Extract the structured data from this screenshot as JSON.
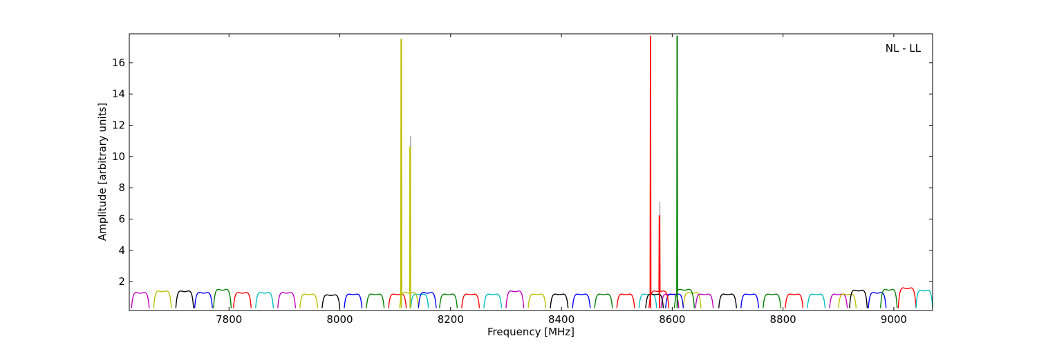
{
  "chart_data": {
    "type": "line",
    "title": "",
    "annotation": "NL - LL",
    "xlabel": "Frequency [MHz]",
    "ylabel": "Amplitude [arbitrary units]",
    "xlim": [
      7620,
      9070
    ],
    "ylim": [
      0.15,
      17.85
    ],
    "x_ticks": [
      7800,
      8000,
      8200,
      8400,
      8600,
      8800,
      9000
    ],
    "y_ticks": [
      2,
      4,
      6,
      8,
      10,
      12,
      14,
      16
    ],
    "grid": false,
    "legend": "none",
    "subband_width_mhz": 40,
    "series_colors": [
      "#bf00bf",
      "#bfbf00",
      "#000000",
      "#0000ff",
      "#008000",
      "#ff0000",
      "#00bfbf"
    ],
    "series": [
      {
        "color": "#bf00bf",
        "x_start": 7624,
        "x_end": 7656,
        "peak": 1.3
      },
      {
        "color": "#bfbf00",
        "x_start": 7664,
        "x_end": 7696,
        "peak": 1.4
      },
      {
        "color": "#000000",
        "x_start": 7704,
        "x_end": 7736,
        "peak": 1.4
      },
      {
        "color": "#0000ff",
        "x_start": 7738,
        "x_end": 7770,
        "peak": 1.3
      },
      {
        "color": "#008000",
        "x_start": 7772,
        "x_end": 7804,
        "peak": 1.5
      },
      {
        "color": "#ff0000",
        "x_start": 7808,
        "x_end": 7840,
        "peak": 1.3
      },
      {
        "color": "#00bfbf",
        "x_start": 7848,
        "x_end": 7880,
        "peak": 1.3
      },
      {
        "color": "#bf00bf",
        "x_start": 7888,
        "x_end": 7920,
        "peak": 1.3
      },
      {
        "color": "#bfbf00",
        "x_start": 7928,
        "x_end": 7960,
        "peak": 1.2
      },
      {
        "color": "#000000",
        "x_start": 7968,
        "x_end": 8000,
        "peak": 1.15
      },
      {
        "color": "#0000ff",
        "x_start": 8008,
        "x_end": 8040,
        "peak": 1.2
      },
      {
        "color": "#008000",
        "x_start": 8048,
        "x_end": 8080,
        "peak": 1.2
      },
      {
        "color": "#ff0000",
        "x_start": 8088,
        "x_end": 8120,
        "peak": 1.2
      },
      {
        "color": "#00bfbf",
        "x_start": 8128,
        "x_end": 8160,
        "peak": 1.2
      },
      {
        "color": "#bfbf00",
        "x_start": 8108,
        "x_end": 8142,
        "peak": 1.3,
        "spikes": [
          {
            "x": 8111,
            "y": 17.5
          },
          {
            "x": 8127,
            "y": 10.6
          }
        ]
      },
      {
        "color": "#0000ff",
        "x_start": 8142,
        "x_end": 8174,
        "peak": 1.3
      },
      {
        "color": "#008000",
        "x_start": 8180,
        "x_end": 8212,
        "peak": 1.2
      },
      {
        "color": "#ff0000",
        "x_start": 8220,
        "x_end": 8252,
        "peak": 1.2
      },
      {
        "color": "#00bfbf",
        "x_start": 8260,
        "x_end": 8292,
        "peak": 1.2
      },
      {
        "color": "#bf00bf",
        "x_start": 8300,
        "x_end": 8332,
        "peak": 1.4
      },
      {
        "color": "#bfbf00",
        "x_start": 8340,
        "x_end": 8372,
        "peak": 1.2
      },
      {
        "color": "#000000",
        "x_start": 8380,
        "x_end": 8412,
        "peak": 1.2
      },
      {
        "color": "#0000ff",
        "x_start": 8420,
        "x_end": 8452,
        "peak": 1.2
      },
      {
        "color": "#008000",
        "x_start": 8460,
        "x_end": 8492,
        "peak": 1.2
      },
      {
        "color": "#ff0000",
        "x_start": 8500,
        "x_end": 8532,
        "peak": 1.2
      },
      {
        "color": "#00bfbf",
        "x_start": 8540,
        "x_end": 8572,
        "peak": 1.2
      },
      {
        "color": "#bf00bf",
        "x_start": 8580,
        "x_end": 8612,
        "peak": 1.2
      },
      {
        "color": "#bfbf00",
        "x_start": 8620,
        "x_end": 8652,
        "peak": 1.3
      },
      {
        "color": "#000000",
        "x_start": 8552,
        "x_end": 8584,
        "peak": 1.2
      },
      {
        "color": "#0000ff",
        "x_start": 8588,
        "x_end": 8620,
        "peak": 1.2
      },
      {
        "color": "#ff0000",
        "x_start": 8558,
        "x_end": 8594,
        "peak": 1.4,
        "spikes": [
          {
            "x": 8561,
            "y": 17.7
          },
          {
            "x": 8577,
            "y": 6.2
          }
        ]
      },
      {
        "color": "#008000",
        "x_start": 8604,
        "x_end": 8640,
        "peak": 1.5,
        "spikes": [
          {
            "x": 8609,
            "y": 17.7
          }
        ]
      },
      {
        "color": "#bf00bf",
        "x_start": 8642,
        "x_end": 8674,
        "peak": 1.2
      },
      {
        "color": "#000000",
        "x_start": 8684,
        "x_end": 8716,
        "peak": 1.2
      },
      {
        "color": "#0000ff",
        "x_start": 8724,
        "x_end": 8756,
        "peak": 1.2
      },
      {
        "color": "#008000",
        "x_start": 8764,
        "x_end": 8796,
        "peak": 1.2
      },
      {
        "color": "#ff0000",
        "x_start": 8804,
        "x_end": 8836,
        "peak": 1.2
      },
      {
        "color": "#00bfbf",
        "x_start": 8844,
        "x_end": 8876,
        "peak": 1.2
      },
      {
        "color": "#bf00bf",
        "x_start": 8884,
        "x_end": 8916,
        "peak": 1.2
      },
      {
        "color": "#bfbf00",
        "x_start": 8900,
        "x_end": 8932,
        "peak": 1.2
      },
      {
        "color": "#000000",
        "x_start": 8920,
        "x_end": 8952,
        "peak": 1.45
      },
      {
        "color": "#0000ff",
        "x_start": 8954,
        "x_end": 8986,
        "peak": 1.3
      },
      {
        "color": "#008000",
        "x_start": 8976,
        "x_end": 9006,
        "peak": 1.5
      },
      {
        "color": "#ff0000",
        "x_start": 9008,
        "x_end": 9040,
        "peak": 1.6
      },
      {
        "color": "#00bfbf",
        "x_start": 9040,
        "x_end": 9070,
        "peak": 1.45
      }
    ],
    "grey_spikes": [
      {
        "x": 8127,
        "y": 11.3
      },
      {
        "x": 8577,
        "y": 7.1
      }
    ]
  }
}
